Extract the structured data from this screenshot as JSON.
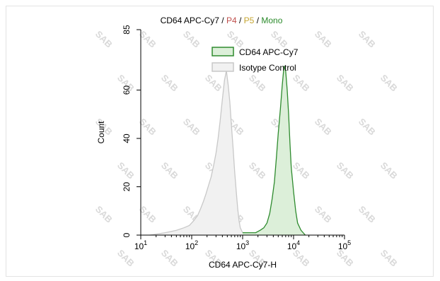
{
  "chart_data": {
    "type": "area",
    "title_parts": [
      {
        "text": "CD64 APC-Cy7",
        "color": "#000000"
      },
      {
        "text": " / ",
        "color": "#000000"
      },
      {
        "text": "P4",
        "color": "#c0504d"
      },
      {
        "text": " / ",
        "color": "#000000"
      },
      {
        "text": "P5",
        "color": "#c6a530"
      },
      {
        "text": " / ",
        "color": "#000000"
      },
      {
        "text": "Mono",
        "color": "#2a8a2a"
      }
    ],
    "xlabel": "CD64 APC-Cy7-H",
    "ylabel": "Count",
    "x_scale": "log",
    "xlim": [
      10,
      100000
    ],
    "ylim": [
      0,
      85
    ],
    "x_ticks": [
      {
        "base": "10",
        "exp": "1"
      },
      {
        "base": "10",
        "exp": "2"
      },
      {
        "base": "10",
        "exp": "3"
      },
      {
        "base": "10",
        "exp": "4"
      },
      {
        "base": "10",
        "exp": "5"
      }
    ],
    "y_ticks": [
      "0",
      "20",
      "40",
      "60",
      "85"
    ],
    "y_tick_values": [
      0,
      20,
      40,
      60,
      85
    ],
    "legend_position": "top-right",
    "series": [
      {
        "name": "CD64 APC-Cy7",
        "stroke": "#2e8b2e",
        "fill": "#dcefd9",
        "x": [
          1000,
          1400,
          1800,
          2200,
          2600,
          3000,
          3400,
          3800,
          4200,
          4600,
          5000,
          5500,
          6000,
          6500,
          7000,
          7500,
          8000,
          8500,
          9000,
          10000,
          11000,
          12000,
          14000,
          17000
        ],
        "y": [
          1,
          1,
          1,
          2,
          3,
          5,
          9,
          15,
          22,
          32,
          42,
          52,
          62,
          70,
          68,
          60,
          50,
          38,
          28,
          18,
          10,
          5,
          2,
          0
        ]
      },
      {
        "name": "Isotype Control",
        "stroke": "#c8c8c8",
        "fill": "#f1f1f1",
        "x": [
          15,
          30,
          50,
          70,
          90,
          110,
          130,
          150,
          170,
          190,
          210,
          240,
          270,
          300,
          330,
          360,
          400,
          440,
          480,
          520,
          560,
          600,
          650,
          700,
          750,
          800,
          850,
          900,
          1000,
          1200
        ],
        "y": [
          0,
          1,
          2,
          3,
          4,
          6,
          8,
          11,
          14,
          17,
          20,
          24,
          29,
          34,
          40,
          47,
          56,
          64,
          68,
          62,
          55,
          46,
          36,
          26,
          18,
          11,
          6,
          3,
          1,
          0
        ]
      }
    ]
  },
  "watermark": "SAB"
}
